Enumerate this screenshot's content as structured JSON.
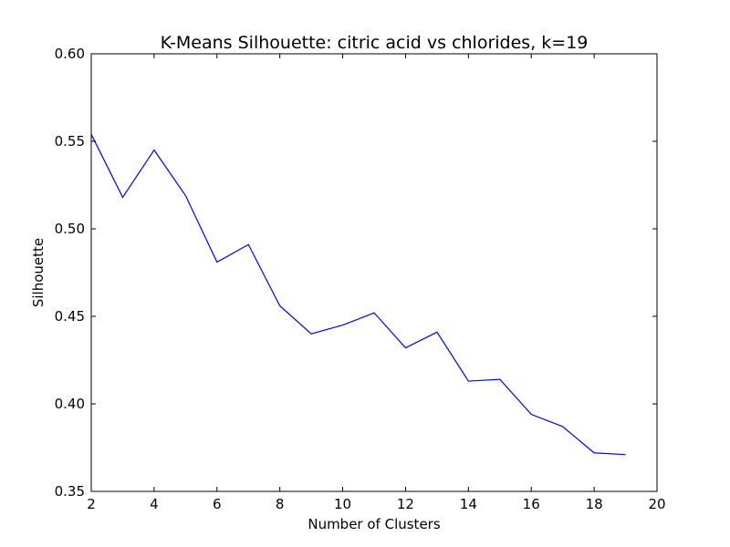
{
  "chart_data": {
    "type": "line",
    "title": "K-Means Silhouette: citric acid vs chlorides, k=19",
    "xlabel": "Number of Clusters",
    "ylabel": "Silhouette",
    "xlim": [
      2,
      20
    ],
    "ylim": [
      0.35,
      0.6
    ],
    "xticks": [
      2,
      4,
      6,
      8,
      10,
      12,
      14,
      16,
      18,
      20
    ],
    "xtick_labels": [
      "2",
      "4",
      "6",
      "8",
      "10",
      "12",
      "14",
      "16",
      "18",
      "20"
    ],
    "yticks": [
      0.35,
      0.4,
      0.45,
      0.5,
      0.55,
      0.6
    ],
    "ytick_labels": [
      "0.35",
      "0.40",
      "0.45",
      "0.50",
      "0.55",
      "0.60"
    ],
    "grid": false,
    "line_color": "#0000ff",
    "series": [
      {
        "x": [
          2,
          3,
          4,
          5,
          6,
          7,
          8,
          9,
          10,
          11,
          12,
          13,
          14,
          15,
          16,
          17,
          18,
          19
        ],
        "values": [
          0.554,
          0.518,
          0.545,
          0.519,
          0.481,
          0.491,
          0.456,
          0.44,
          0.445,
          0.452,
          0.432,
          0.441,
          0.413,
          0.414,
          0.394,
          0.387,
          0.372,
          0.371
        ]
      }
    ]
  }
}
